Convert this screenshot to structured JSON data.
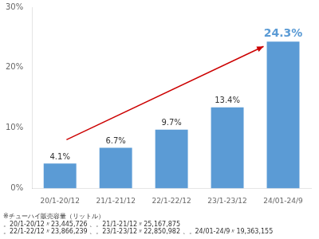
{
  "chart_data": {
    "type": "bar",
    "categories": [
      "20/1-20/12",
      "21/1-21/12",
      "22/1-22/12",
      "23/1-23/12",
      "24/01-24/9"
    ],
    "values": [
      4.1,
      6.7,
      9.7,
      13.4,
      24.3
    ],
    "value_labels": [
      "4.1%",
      "6.7%",
      "9.7%",
      "13.4%",
      "24.3%"
    ],
    "data_labels": true,
    "color": "#5b9bd5",
    "ylim": [
      0,
      30
    ],
    "yticks": [
      {
        "value": 0,
        "label": "0%"
      },
      {
        "value": 10,
        "label": "10%"
      },
      {
        "value": 20,
        "label": "20%"
      },
      {
        "value": 30,
        "label": "30%"
      }
    ],
    "grid": false,
    "annotations": [
      "※チューハイ販売容量（リットル）",
      "。20/1-20/12〃23,445,726 、。21/1-21/12〃25,167,875",
      "。22/1-22/12〃23,866,239 、。23/1-23/12〃22,850,982 、。24/01-24/9〃19,363,155"
    ]
  }
}
